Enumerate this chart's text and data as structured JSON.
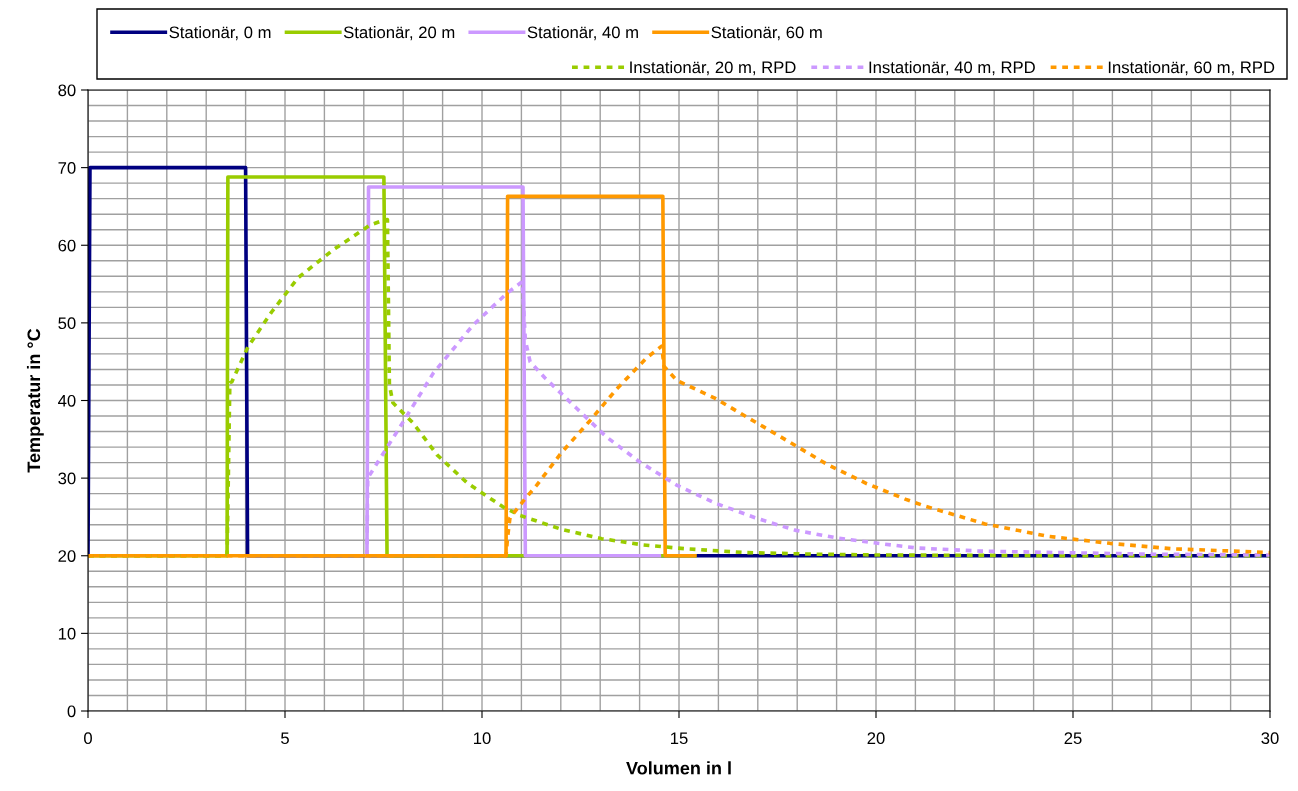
{
  "chart_data": {
    "type": "line",
    "xlabel": "Volumen in l",
    "ylabel": "Temperatur in °C",
    "xlim": [
      0,
      30
    ],
    "ylim": [
      0,
      80
    ],
    "xticks": [
      0,
      5,
      10,
      15,
      20,
      25,
      30
    ],
    "yticks": [
      0,
      10,
      20,
      30,
      40,
      50,
      60,
      70,
      80
    ],
    "grid": true,
    "legend": "top",
    "marker": "none",
    "series": [
      {
        "name": "Stationär, 0 m",
        "color": "#000080",
        "line_style": "solid",
        "x": [
          0,
          0.05,
          4.0,
          4.05,
          30
        ],
        "values": [
          20,
          70,
          70,
          20,
          20
        ]
      },
      {
        "name": "Stationär, 20 m",
        "color": "#99cc00",
        "line_style": "solid",
        "x": [
          0,
          3.53,
          3.55,
          7.51,
          7.59,
          15.4
        ],
        "values": [
          20,
          20,
          68.8,
          68.8,
          20,
          20
        ]
      },
      {
        "name": "Stationär, 40 m",
        "color": "#cc99ff",
        "line_style": "solid",
        "x": [
          7.08,
          7.12,
          11.04,
          11.1,
          14.5
        ],
        "values": [
          20,
          67.5,
          67.5,
          20,
          20
        ]
      },
      {
        "name": "Stationär, 60 m",
        "color": "#ff9900",
        "line_style": "solid",
        "x": [
          0,
          10.61,
          10.65,
          14.59,
          14.65,
          15.4
        ],
        "values": [
          20,
          20,
          66.3,
          66.3,
          20,
          20
        ]
      },
      {
        "name": "Instationär, 20 m, RPD",
        "color": "#99cc00",
        "line_style": "dashed",
        "x": [
          0,
          3.53,
          3.6,
          3.65,
          4.06,
          4.66,
          5.33,
          6.22,
          7.16,
          7.49,
          7.6,
          7.65,
          7.74,
          8.25,
          8.86,
          9.62,
          10.53,
          10.96,
          12.02,
          13.04,
          14.09,
          15.15,
          16.72,
          18.5,
          20,
          25,
          30
        ],
        "values": [
          20,
          20,
          42.3,
          42.4,
          46.9,
          51.4,
          55.8,
          59.4,
          62.6,
          63.2,
          63.3,
          42,
          39.7,
          37.1,
          33.0,
          29.4,
          26.3,
          25.2,
          23.4,
          22.2,
          21.4,
          20.9,
          20.4,
          20.2,
          20.1,
          20,
          20
        ]
      },
      {
        "name": "Instationär, 40 m, RPD",
        "color": "#cc99ff",
        "line_style": "dashed",
        "x": [
          7.08,
          7.1,
          7.36,
          7.92,
          8.76,
          9.77,
          10.63,
          11.02,
          11.1,
          11.22,
          11.6,
          12.4,
          13.16,
          14.0,
          14.94,
          15.91,
          16.93,
          17.94,
          19.0,
          20.05,
          21.03,
          22.64,
          24.75,
          27,
          30
        ],
        "values": [
          20,
          30,
          32.1,
          36.6,
          43.5,
          49.7,
          53.8,
          55.3,
          47.8,
          45.0,
          42.9,
          39.0,
          35.3,
          32.1,
          29.1,
          26.8,
          24.9,
          23.3,
          22.3,
          21.6,
          21.0,
          20.6,
          20.4,
          20.2,
          20.1
        ]
      },
      {
        "name": "Instationär, 60 m, RPD",
        "color": "#ff9900",
        "line_style": "dashed",
        "x": [
          0,
          10.61,
          10.65,
          10.71,
          11.04,
          11.39,
          12.02,
          12.74,
          13.42,
          14.18,
          14.56,
          14.62,
          14.94,
          15.91,
          16.88,
          17.82,
          18.75,
          19.76,
          20.74,
          21.24,
          22.77,
          24.37,
          25.94,
          27.5,
          29.57,
          30
        ],
        "values": [
          20,
          20,
          22.4,
          24.9,
          27.0,
          29.1,
          33.3,
          37.4,
          41.5,
          45.5,
          47.0,
          44.4,
          42.6,
          40.3,
          37.4,
          34.6,
          31.8,
          29.3,
          27.3,
          26.4,
          24.1,
          22.5,
          21.6,
          20.9,
          20.5,
          20.4
        ]
      }
    ]
  }
}
